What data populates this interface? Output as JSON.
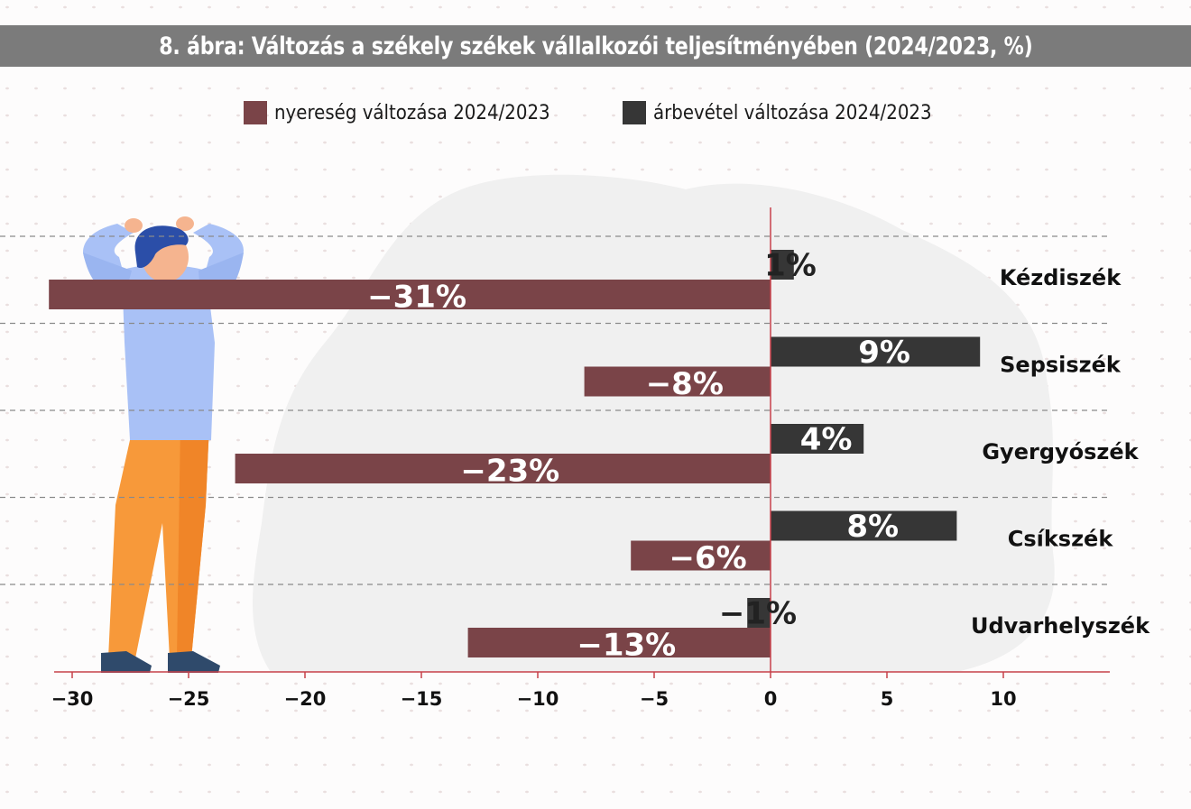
{
  "title": "8. ábra: Változás a székely székek vállalkozói teljesítményében (2024/2023, %)",
  "colors": {
    "profit": "#7a4448",
    "revenue": "#363636",
    "axis": "#c7414a",
    "title_bar": "#7b7b7b",
    "gridline": "#8a8a8a"
  },
  "legend": [
    {
      "label": "nyereség változása 2024/2023",
      "color": "#7a4448"
    },
    {
      "label": "árbevétel változása 2024/2023",
      "color": "#363636"
    }
  ],
  "chart_data": {
    "type": "bar",
    "orientation": "horizontal",
    "title": "8. ábra: Változás a székely székek vállalkozói teljesítményében (2024/2023, %)",
    "categories": [
      "Kézdiszék",
      "Sepsiszék",
      "Gyergyószék",
      "Csíkszék",
      "Udvarhelyszék"
    ],
    "series": [
      {
        "name": "árbevétel változása 2024/2023",
        "values": [
          1,
          9,
          4,
          8,
          -1
        ],
        "labels": [
          "1%",
          "9%",
          "4%",
          "8%",
          "−1%"
        ]
      },
      {
        "name": "nyereség változása 2024/2023",
        "values": [
          -31,
          -8,
          -23,
          -6,
          -13
        ],
        "labels": [
          "−31%",
          "−8%",
          "−23%",
          "−6%",
          "−13%"
        ]
      }
    ],
    "xticks": [
      -30,
      -25,
      -20,
      -15,
      -10,
      -5,
      0,
      5,
      10
    ],
    "xtick_labels": [
      "−30",
      "−25",
      "−20",
      "−15",
      "−10",
      "−5",
      "0",
      "5",
      "10"
    ],
    "xlim": [
      -31,
      14.6
    ],
    "xlabel": "",
    "ylabel": "",
    "grid": "dashed horizontal separators between categories",
    "legend_position": "top"
  }
}
